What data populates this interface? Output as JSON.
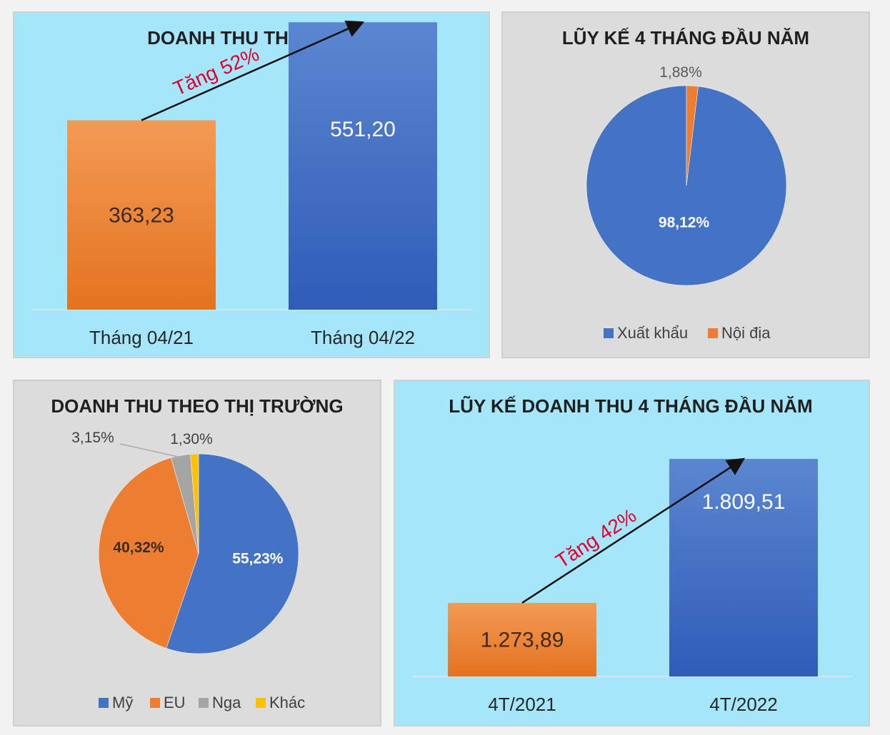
{
  "chart_data": [
    {
      "type": "bar",
      "title": "DOANH THU THÁNG 04",
      "categories": [
        "Tháng 04/21",
        "Tháng 04/22"
      ],
      "values": [
        363.23,
        551.2
      ],
      "value_labels": [
        "363,23",
        "551,20"
      ],
      "colors": [
        "#ed7d31",
        "#4472c4"
      ],
      "annotation": "Tăng 52%",
      "ylim": [
        0,
        650
      ],
      "grid": false
    },
    {
      "type": "pie",
      "title": "LŨY KẾ 4 THÁNG ĐẦU NĂM",
      "labels": [
        "Xuất khẩu",
        "Nội địa"
      ],
      "values": [
        98.12,
        1.88
      ],
      "value_labels": [
        "98,12%",
        "1,88%"
      ],
      "colors": [
        "#4472c4",
        "#ed7d31"
      ],
      "legend": "bottom"
    },
    {
      "type": "pie",
      "title": "DOANH THU THEO THỊ TRƯỜNG",
      "labels": [
        "Mỹ",
        "EU",
        "Nga",
        "Khác"
      ],
      "values": [
        55.23,
        40.32,
        3.15,
        1.3
      ],
      "value_labels": [
        "55,23%",
        "40,32%",
        "3,15%",
        "1,30%"
      ],
      "colors": [
        "#4472c4",
        "#ed7d31",
        "#a5a5a5",
        "#ffc000"
      ],
      "legend": "bottom"
    },
    {
      "type": "bar",
      "title": "LŨY KẾ DOANH THU 4 THÁNG ĐẦU NĂM",
      "categories": [
        "4T/2021",
        "4T/2022"
      ],
      "values": [
        1273.89,
        1809.51
      ],
      "value_labels": [
        "1.273,89",
        "1.809,51"
      ],
      "colors": [
        "#ed7d31",
        "#4472c4"
      ],
      "annotation": "Tăng 42%",
      "ylim": [
        1000,
        1900
      ],
      "grid": false
    }
  ]
}
